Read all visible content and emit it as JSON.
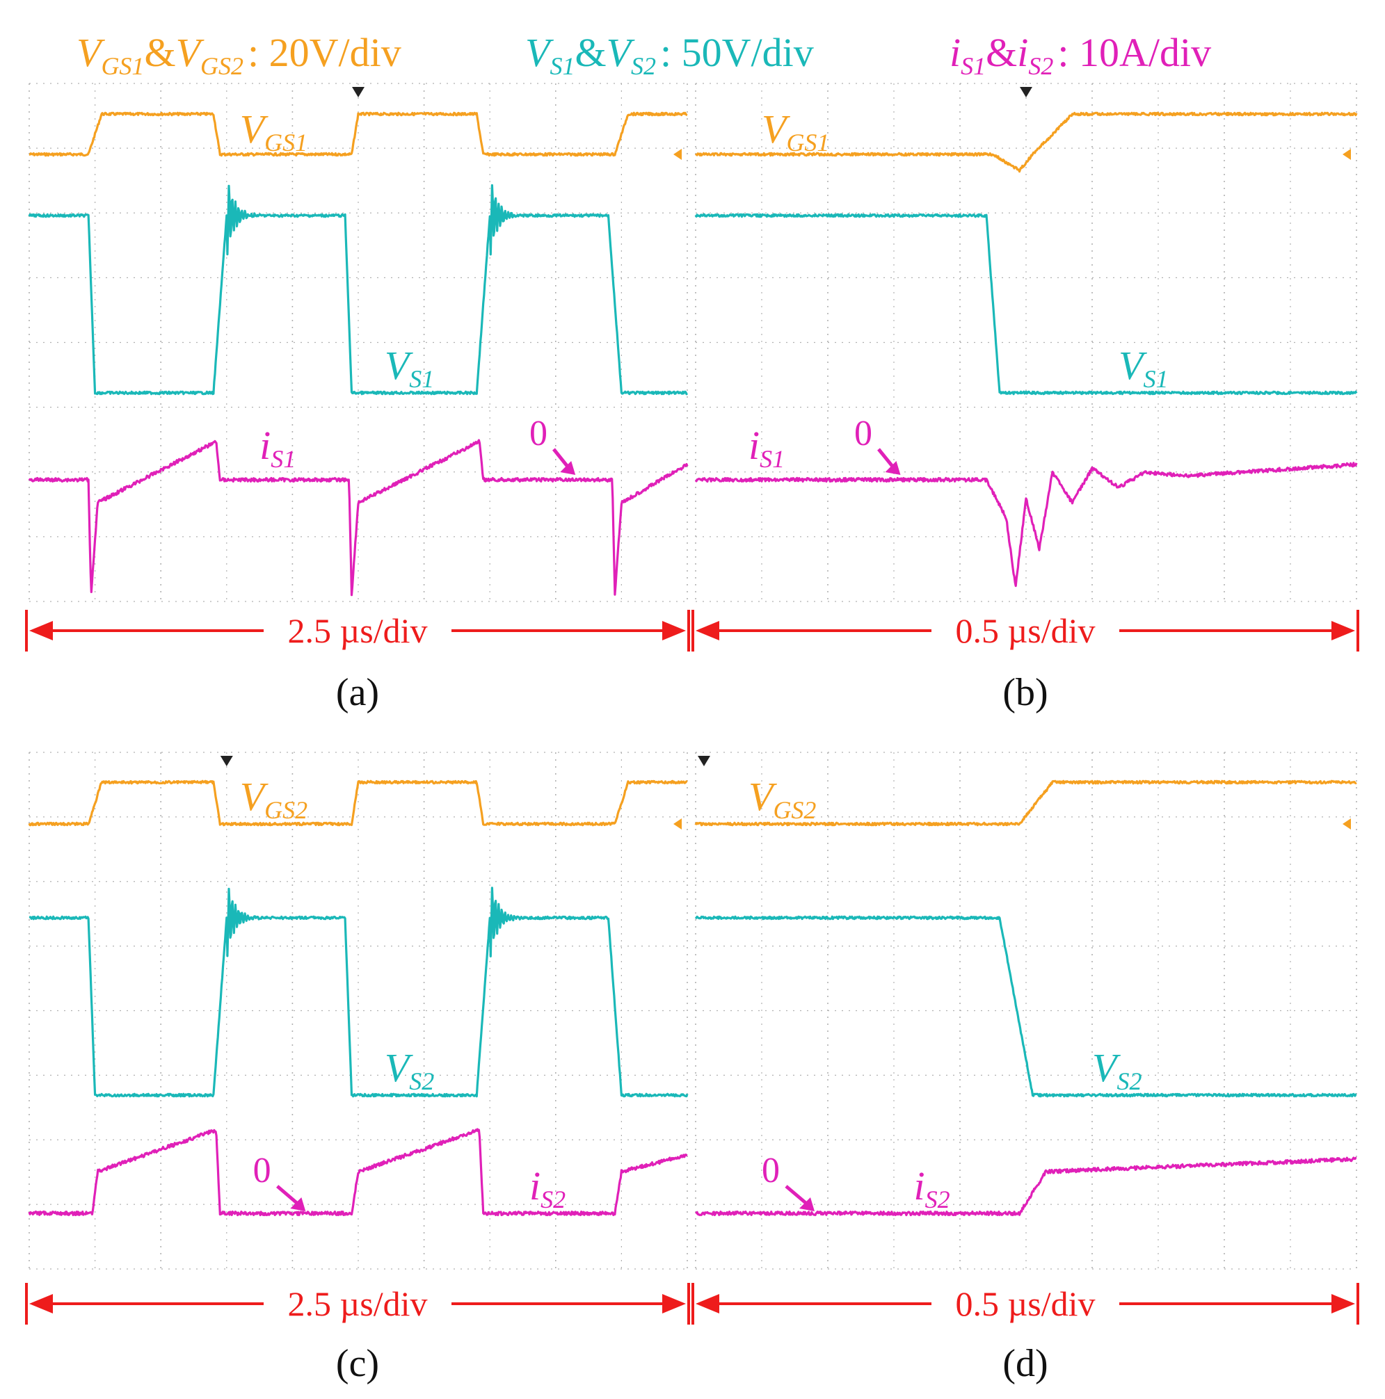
{
  "legend": {
    "vgs": {
      "v": "V",
      "s1": "GS1",
      "amp": "&",
      "s2": "GS2",
      "scale": ": 20V/div",
      "color": "#f5a020"
    },
    "vs": {
      "v": "V",
      "s1": "S1",
      "amp": "&",
      "s2": "S2",
      "scale": ": 50V/div",
      "color": "#1ab8b8"
    },
    "is": {
      "v": "i",
      "s1": "S1",
      "amp": "&",
      "s2": "S2",
      "scale": ": 10A/div",
      "color": "#e020b8"
    }
  },
  "colors": {
    "vgs": "#f5a020",
    "vs": "#1ab8b8",
    "is": "#e020b8",
    "arrow": "#ee1c1c",
    "grid": "#b0b0b0"
  },
  "chart_data": [
    {
      "type": "line",
      "panel": "(a)",
      "xlabel": "2.5 µs/div",
      "x_div": 2.5,
      "x_unit": "µs",
      "x_divisions": 5,
      "labels": {
        "vgs": {
          "v": "V",
          "sub": "GS1"
        },
        "vs": {
          "v": "V",
          "sub": "S1"
        },
        "is": {
          "v": "i",
          "sub": "S1"
        },
        "zero": "0"
      },
      "series": [
        {
          "name": "VGS1",
          "scale": "20V/div",
          "values": [
            [
              0,
              0
            ],
            [
              0.45,
              0
            ],
            [
              0.55,
              1
            ],
            [
              1.4,
              1
            ],
            [
              1.45,
              0
            ],
            [
              2.45,
              0
            ],
            [
              2.5,
              1
            ],
            [
              3.4,
              1
            ],
            [
              3.45,
              0
            ],
            [
              4.45,
              0
            ],
            [
              4.55,
              1
            ],
            [
              5,
              1
            ]
          ]
        },
        {
          "name": "VS1",
          "scale": "50V/div",
          "values": [
            [
              0,
              1
            ],
            [
              0.45,
              1
            ],
            [
              0.5,
              0
            ],
            [
              1.4,
              0
            ],
            [
              1.5,
              1
            ],
            [
              2.4,
              1
            ],
            [
              2.45,
              0
            ],
            [
              3.4,
              0
            ],
            [
              3.5,
              1
            ],
            [
              4.4,
              1
            ],
            [
              4.5,
              0
            ],
            [
              5,
              0
            ]
          ]
        },
        {
          "name": "iS1",
          "scale": "10A/div",
          "values": [
            [
              0,
              0
            ],
            [
              0.45,
              0
            ],
            [
              0.47,
              -3
            ],
            [
              0.52,
              -0.6
            ],
            [
              1.42,
              1
            ],
            [
              1.45,
              0
            ],
            [
              2.43,
              0
            ],
            [
              2.45,
              -3
            ],
            [
              2.5,
              -0.6
            ],
            [
              3.42,
              1
            ],
            [
              3.45,
              0
            ],
            [
              4.43,
              0
            ],
            [
              4.45,
              -3
            ],
            [
              4.5,
              -0.6
            ],
            [
              5,
              0.4
            ]
          ]
        }
      ]
    },
    {
      "type": "line",
      "panel": "(b)",
      "xlabel": "0.5 µs/div",
      "x_div": 0.5,
      "x_unit": "µs",
      "x_divisions": 5,
      "labels": {
        "vgs": {
          "v": "V",
          "sub": "GS1"
        },
        "vs": {
          "v": "V",
          "sub": "S1"
        },
        "is": {
          "v": "i",
          "sub": "S1"
        },
        "zero": "0"
      },
      "series": [
        {
          "name": "VGS1",
          "scale": "20V/div",
          "values": [
            [
              0,
              0
            ],
            [
              2.25,
              0
            ],
            [
              2.45,
              -0.4
            ],
            [
              2.55,
              0
            ],
            [
              2.85,
              1
            ],
            [
              5,
              1
            ]
          ]
        },
        {
          "name": "VS1",
          "scale": "50V/div",
          "values": [
            [
              0,
              1
            ],
            [
              2.2,
              1
            ],
            [
              2.3,
              0
            ],
            [
              5,
              0
            ]
          ]
        },
        {
          "name": "iS1",
          "scale": "10A/div",
          "values": [
            [
              0,
              0
            ],
            [
              2.2,
              0
            ],
            [
              2.35,
              -1
            ],
            [
              2.42,
              -2.8
            ],
            [
              2.5,
              -0.5
            ],
            [
              2.6,
              -1.8
            ],
            [
              2.7,
              0.2
            ],
            [
              2.85,
              -0.6
            ],
            [
              3.0,
              0.3
            ],
            [
              3.2,
              -0.2
            ],
            [
              3.4,
              0.2
            ],
            [
              3.7,
              0.1
            ],
            [
              5,
              0.4
            ]
          ]
        }
      ]
    },
    {
      "type": "line",
      "panel": "(c)",
      "xlabel": "2.5 µs/div",
      "x_div": 2.5,
      "x_unit": "µs",
      "x_divisions": 5,
      "labels": {
        "vgs": {
          "v": "V",
          "sub": "GS2"
        },
        "vs": {
          "v": "V",
          "sub": "S2"
        },
        "is": {
          "v": "i",
          "sub": "S2"
        },
        "zero": "0"
      },
      "series": [
        {
          "name": "VGS2",
          "scale": "20V/div",
          "values": [
            [
              0,
              0
            ],
            [
              0.45,
              0
            ],
            [
              0.55,
              1
            ],
            [
              1.4,
              1
            ],
            [
              1.45,
              0
            ],
            [
              2.45,
              0
            ],
            [
              2.5,
              1
            ],
            [
              3.4,
              1
            ],
            [
              3.45,
              0
            ],
            [
              4.45,
              0
            ],
            [
              4.55,
              1
            ],
            [
              5,
              1
            ]
          ]
        },
        {
          "name": "VS2",
          "scale": "50V/div",
          "values": [
            [
              0,
              1
            ],
            [
              0.45,
              1
            ],
            [
              0.5,
              0
            ],
            [
              1.4,
              0
            ],
            [
              1.5,
              1
            ],
            [
              2.4,
              1
            ],
            [
              2.45,
              0
            ],
            [
              3.4,
              0
            ],
            [
              3.5,
              1
            ],
            [
              4.4,
              1
            ],
            [
              4.5,
              0
            ],
            [
              5,
              0
            ]
          ]
        },
        {
          "name": "iS2",
          "scale": "10A/div",
          "values": [
            [
              0,
              0
            ],
            [
              0.48,
              0
            ],
            [
              0.52,
              1
            ],
            [
              1.42,
              2
            ],
            [
              1.45,
              0
            ],
            [
              2.45,
              0
            ],
            [
              2.5,
              1
            ],
            [
              3.42,
              2
            ],
            [
              3.45,
              0
            ],
            [
              4.45,
              0
            ],
            [
              4.5,
              1
            ],
            [
              5,
              1.4
            ]
          ]
        }
      ]
    },
    {
      "type": "line",
      "panel": "(d)",
      "xlabel": "0.5 µs/div",
      "x_div": 0.5,
      "x_unit": "µs",
      "x_divisions": 5,
      "labels": {
        "vgs": {
          "v": "V",
          "sub": "GS2"
        },
        "vs": {
          "v": "V",
          "sub": "S2"
        },
        "is": {
          "v": "i",
          "sub": "S2"
        },
        "zero": "0"
      },
      "series": [
        {
          "name": "VGS2",
          "scale": "20V/div",
          "values": [
            [
              0,
              0
            ],
            [
              2.45,
              0
            ],
            [
              2.7,
              1
            ],
            [
              5,
              1
            ]
          ]
        },
        {
          "name": "VS2",
          "scale": "50V/div",
          "values": [
            [
              0,
              1
            ],
            [
              2.3,
              1
            ],
            [
              2.55,
              0
            ],
            [
              5,
              0
            ]
          ]
        },
        {
          "name": "iS2",
          "scale": "10A/div",
          "values": [
            [
              0,
              0
            ],
            [
              2.45,
              0
            ],
            [
              2.65,
              1
            ],
            [
              5,
              1.3
            ]
          ]
        }
      ]
    }
  ],
  "panel_ids": [
    "(a)",
    "(b)",
    "(c)",
    "(d)"
  ]
}
